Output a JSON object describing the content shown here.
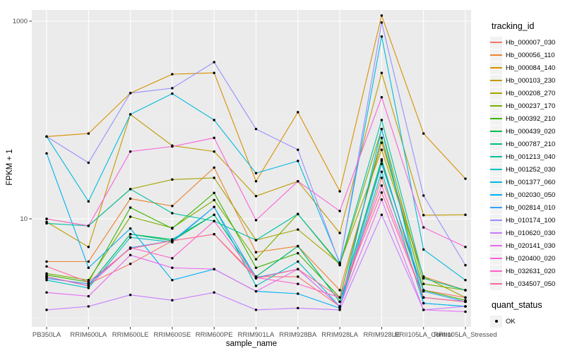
{
  "figure": {
    "background": "#FFFFFF",
    "panel_bg": "#EBEBEB",
    "grid_major_color": "#FFFFFF",
    "grid_minor_color": "#F7F7F7",
    "tick_mark_color": "#333333",
    "tick_label_color": "#4D4D4D",
    "point_color": "#000000"
  },
  "chart_data": {
    "type": "line",
    "title": "",
    "xlabel": "sample_name",
    "ylabel": "FPKM + 1",
    "y_scale": "log10",
    "y_ticks": [
      10,
      1000
    ],
    "y_tick_labels": [
      "10",
      "1000"
    ],
    "y_minor_ticks": [
      1,
      100
    ],
    "ylim": [
      0.8,
      1300
    ],
    "grid": true,
    "legend_position": "right",
    "categories": [
      "PB350LA",
      "RRIM600LA",
      "RRIM600LE",
      "RRIM600SE",
      "RRIM600PE",
      "RRIM901LA",
      "RRIM928BA",
      "RRIM928LA",
      "RRIM928LE",
      "RRII105LA_Control",
      "RRII105LA_Stressed"
    ],
    "series": [
      {
        "name": "Hb_000007_030",
        "color": "#F8766D",
        "values": [
          2.5,
          2.2,
          3.5,
          6.0,
          7.0,
          2.6,
          2.6,
          1.3,
          26,
          1.9,
          1.6
        ]
      },
      {
        "name": "Hb_000056_110",
        "color": "#EA8331",
        "values": [
          3.7,
          3.7,
          16,
          13.5,
          33,
          4.6,
          5.3,
          1.9,
          59,
          2.6,
          1.9
        ]
      },
      {
        "name": "Hb_000084_140",
        "color": "#D89000",
        "values": [
          68,
          73,
          187,
          291,
          300,
          24,
          120,
          19,
          1140,
          73,
          25.5
        ]
      },
      {
        "name": "Hb_000103_230",
        "color": "#C09B00",
        "values": [
          9.3,
          5.2,
          114,
          55,
          48,
          17,
          24,
          7.2,
          300,
          10.9,
          11
        ]
      },
      {
        "name": "Hb_000208_270",
        "color": "#A3A500",
        "values": [
          10,
          8.5,
          20,
          25,
          26,
          6.1,
          7.8,
          3.5,
          50,
          2.6,
          1.6
        ]
      },
      {
        "name": "Hb_000237_170",
        "color": "#7CAE00",
        "values": [
          2.8,
          2.4,
          10.5,
          8.1,
          15.5,
          3.9,
          11.2,
          3.4,
          81,
          2.2,
          1.9
        ]
      },
      {
        "name": "Hb_000392_210",
        "color": "#39B600",
        "values": [
          2.7,
          2.3,
          13,
          8.0,
          18.3,
          3.2,
          4.5,
          1.6,
          66,
          1.9,
          1.5
        ]
      },
      {
        "name": "Hb_000439_020",
        "color": "#00BB4E",
        "values": [
          2.6,
          2.1,
          7.0,
          6.0,
          11,
          2.6,
          5.3,
          1.45,
          38.5,
          1.6,
          1.45
        ]
      },
      {
        "name": "Hb_000787_210",
        "color": "#00BF7D",
        "values": [
          2.6,
          2.1,
          7.0,
          6.2,
          11,
          2.6,
          5.3,
          1.45,
          40,
          1.6,
          1.45
        ]
      },
      {
        "name": "Hb_001213_040",
        "color": "#00C1A3",
        "values": [
          9.0,
          8.5,
          20,
          11.4,
          9.5,
          6.1,
          11.2,
          3.5,
          100,
          2.5,
          1.9
        ]
      },
      {
        "name": "Hb_001252_030",
        "color": "#00BFC4",
        "values": [
          2.4,
          2.0,
          6.5,
          5.8,
          13.2,
          2.1,
          3.7,
          1.3,
          30,
          1.4,
          1.3
        ]
      },
      {
        "name": "Hb_001377_060",
        "color": "#00BADE",
        "values": [
          68,
          15,
          114,
          185,
          100,
          29,
          38.5,
          3.6,
          700,
          4.9,
          2.4
        ]
      },
      {
        "name": "Hb_002030_050",
        "color": "#00B0F6",
        "values": [
          46,
          3.2,
          8.0,
          2.4,
          3.1,
          1.85,
          1.75,
          1.25,
          81,
          1.4,
          1.3
        ]
      },
      {
        "name": "Hb_002814_010",
        "color": "#35A2FF",
        "values": [
          2.5,
          2.2,
          5.1,
          6.0,
          13.2,
          2.55,
          3.1,
          1.3,
          36,
          1.85,
          1.45
        ]
      },
      {
        "name": "Hb_010174_100",
        "color": "#9590FF",
        "values": [
          68,
          37,
          187,
          210,
          385,
          81,
          50,
          3.5,
          970,
          17.2,
          3.4
        ]
      },
      {
        "name": "Hb_010620_030",
        "color": "#C77CFF",
        "values": [
          1.2,
          1.3,
          1.7,
          1.5,
          1.8,
          1.2,
          1.25,
          1.2,
          11,
          1.2,
          1.3
        ]
      },
      {
        "name": "Hb_020141_030",
        "color": "#E76BF3",
        "values": [
          1.8,
          1.65,
          4.3,
          3.2,
          3.1,
          1.85,
          3.1,
          1.3,
          15.7,
          1.2,
          1.15
        ]
      },
      {
        "name": "Hb_020400_020",
        "color": "#FA62DB",
        "values": [
          10,
          8.5,
          48,
          54,
          66,
          9.7,
          24,
          12,
          170,
          8.2,
          5.2
        ]
      },
      {
        "name": "Hb_032631_020",
        "color": "#FF61CC",
        "values": [
          2.6,
          2.1,
          5.1,
          4.0,
          9.5,
          2.55,
          2.2,
          1.6,
          21.7,
          1.6,
          1.45
        ]
      },
      {
        "name": "Hb_034507_050",
        "color": "#FF6A98",
        "values": [
          3.3,
          2.3,
          5.0,
          6.0,
          7.0,
          2.5,
          3.1,
          1.6,
          18.5,
          1.6,
          1.45
        ]
      }
    ]
  },
  "legend": {
    "tracking_title": "tracking_id",
    "quant_title": "quant_status",
    "quant_ok_label": "OK",
    "key_bg": "#F2F2F2"
  }
}
